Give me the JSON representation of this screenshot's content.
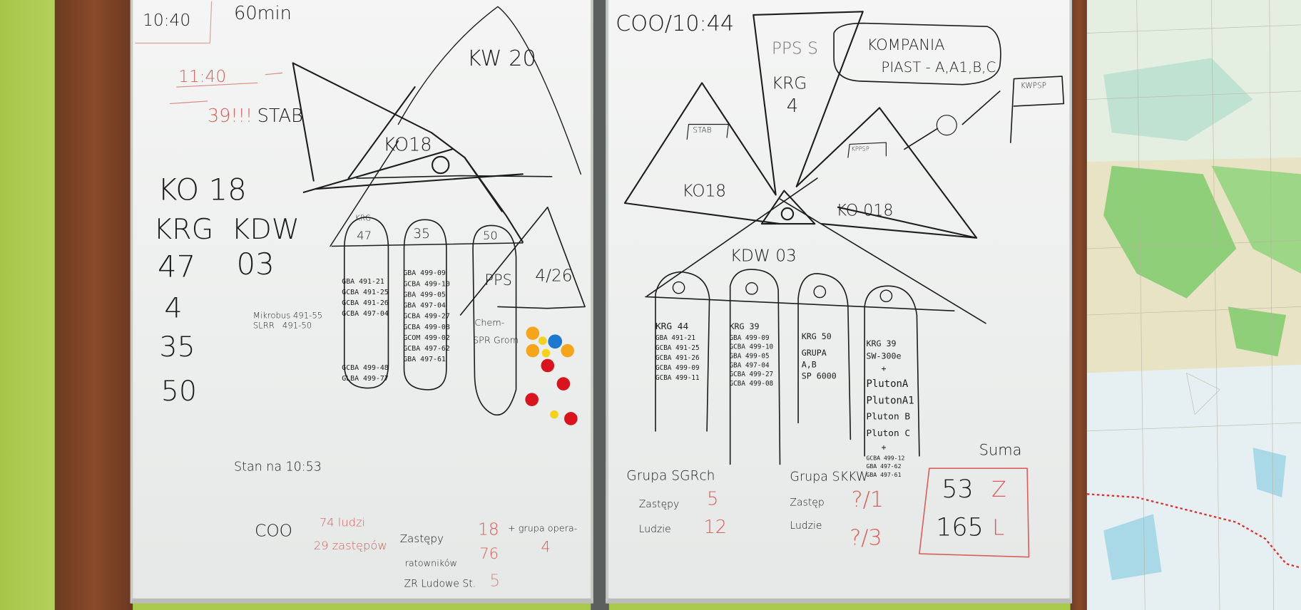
{
  "scene": {
    "colors": {
      "wall": "#a9c94a",
      "frame": "#7a4226",
      "board": "#f0f1f0",
      "ink_black": "#1c1c1c",
      "ink_red": "#d9605a",
      "map_green": "#8fcf7a",
      "map_blue": "#a9d8e6"
    },
    "magnets": [
      "orange",
      "blue",
      "orange",
      "orange",
      "red",
      "red",
      "red",
      "red",
      "yellow-smiley",
      "yellow-smiley",
      "yellow-smiley"
    ]
  },
  "left_board": {
    "time_box": "10:40",
    "duration": "60min",
    "red_time": "11:40",
    "red_note": "39!!!",
    "stab": "STAB",
    "kw": "KW 20",
    "triangle_label": "KO18",
    "summary": {
      "ko": "KO 18",
      "krg_kdw": "KRG  KDW",
      "n47": "47",
      "n03": "03",
      "n4": "4",
      "n35": "35",
      "n50": "50"
    },
    "krg_small": "KRG",
    "columns": [
      {
        "head": "47",
        "items": [
          "GBA 491-21",
          "GCBA 491-25",
          "GCBA 491-26",
          "GCBA 497-04",
          "",
          "",
          "GCBA 499-48",
          "GLBA 499-77"
        ]
      },
      {
        "head": "35",
        "items": [
          "GBA 499-09",
          "GCBA 499-10",
          "GBA 499-05",
          "GBA 497-04",
          "GCBA 499-27",
          "GCBA 499-08",
          "GCOM 499-02",
          "GCBA 497-62",
          "GBA 497-61"
        ]
      },
      {
        "head": "50",
        "items": [
          "PPS",
          "",
          "",
          "Chem-",
          "SPR Grom"
        ]
      }
    ],
    "mikrobus": "Mikrobus 491-55\nSLRR   491-50",
    "fraction": "4/26",
    "stan": "Stan na 10:53",
    "footer": {
      "coo": "COO",
      "ludzi": "74 ludzi",
      "zastepow": "29 zastępów",
      "zastepy_label": "Zastępy",
      "zastepy_val": "18",
      "grupa": "+ grupa opera-",
      "grupa_val": "4",
      "ratownikow_label": "ratowników",
      "ratownikow_val": "76",
      "zr": "ZR Ludowe St.",
      "zr_val": "5"
    }
  },
  "right_board": {
    "title": "COO/10:44",
    "pps": "PPS S",
    "krg": "KRG",
    "krg_n": "4",
    "kompania": "KOMPANIA",
    "piast": "PIAST - A,A1,B,C",
    "kwpsp": "KWPSP",
    "stab": "STAB",
    "kppsp": "KPPSP",
    "ko18_left": "KO18",
    "ko18_right": "KO 018",
    "kdw": "KDW 03",
    "columns": [
      {
        "items": [
          "KRG 44",
          "GBA 491-21",
          "GCBA 491-25",
          "GCBA 491-26",
          "GCBA 499-09",
          "GCBA 499-11"
        ]
      },
      {
        "items": [
          "KRG 39",
          "GBA 499-09",
          "GCBA 499-10",
          "GBA 499-05",
          "GBA 497-04",
          "GCBA 499-27",
          "GCBA 499-08"
        ]
      },
      {
        "items": [
          "KRG 50",
          "",
          "GRUPA",
          "A,B",
          "SP 6000"
        ]
      },
      {
        "items": [
          "KRG 39",
          "SW-300e",
          "   +",
          "PlutonA",
          "PlutonA1",
          "Pluton B",
          "Pluton C",
          "   +",
          "GCBA 499-12",
          "GBA 497-62",
          "GBA 497-61"
        ]
      }
    ],
    "sgrch": {
      "title": "Grupa SGRch",
      "zastepy": "Zastępy",
      "zastepy_val": "5",
      "ludzie": "Ludzie",
      "ludzie_val": "12"
    },
    "skkw": {
      "title": "Grupa SKKW",
      "zastep": "Zastęp",
      "zastep_val": "?/1",
      "ludzie": "Ludzie",
      "ludzie_val": "?/3"
    },
    "suma": {
      "label": "Suma",
      "z": "53",
      "z_unit": "Z",
      "l": "165",
      "l_unit": "L"
    }
  }
}
